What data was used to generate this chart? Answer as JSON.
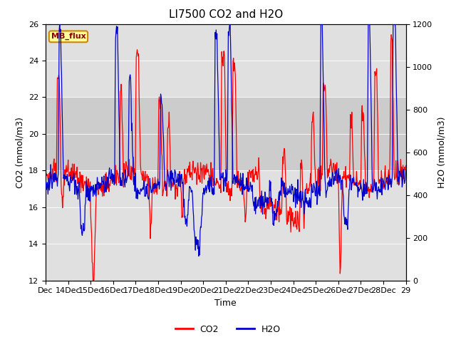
{
  "title": "LI7500 CO2 and H2O",
  "xlabel": "Time",
  "ylabel_left": "CO2 (mmol/m3)",
  "ylabel_right": "H2O (mmol/m3)",
  "co2_ylim": [
    12,
    26
  ],
  "h2o_ylim": [
    0,
    1200
  ],
  "co2_yticks": [
    12,
    14,
    16,
    18,
    20,
    22,
    24,
    26
  ],
  "h2o_yticks": [
    0,
    200,
    400,
    600,
    800,
    1000,
    1200
  ],
  "background_color": "#ffffff",
  "plot_bg_color": "#e0e0e0",
  "shade_co2_low": 18,
  "shade_co2_high": 22,
  "shade_color": "#c8c8c8",
  "legend_label": "MB_flux",
  "line_co2_color": "#ff0000",
  "line_h2o_color": "#0000cc",
  "title_fontsize": 11,
  "axis_fontsize": 9,
  "tick_fontsize": 8,
  "line_width": 0.9,
  "x_labels": [
    "Dec",
    "14Dec",
    "15Dec",
    "16Dec",
    "17Dec",
    "18Dec",
    "19Dec",
    "20Dec",
    "21Dec",
    "22Dec",
    "23Dec",
    "24Dec",
    "25Dec",
    "26Dec",
    "27Dec",
    "28Dec",
    "29"
  ],
  "n_days": 16,
  "legend_co2": "CO2",
  "legend_h2o": "H2O"
}
